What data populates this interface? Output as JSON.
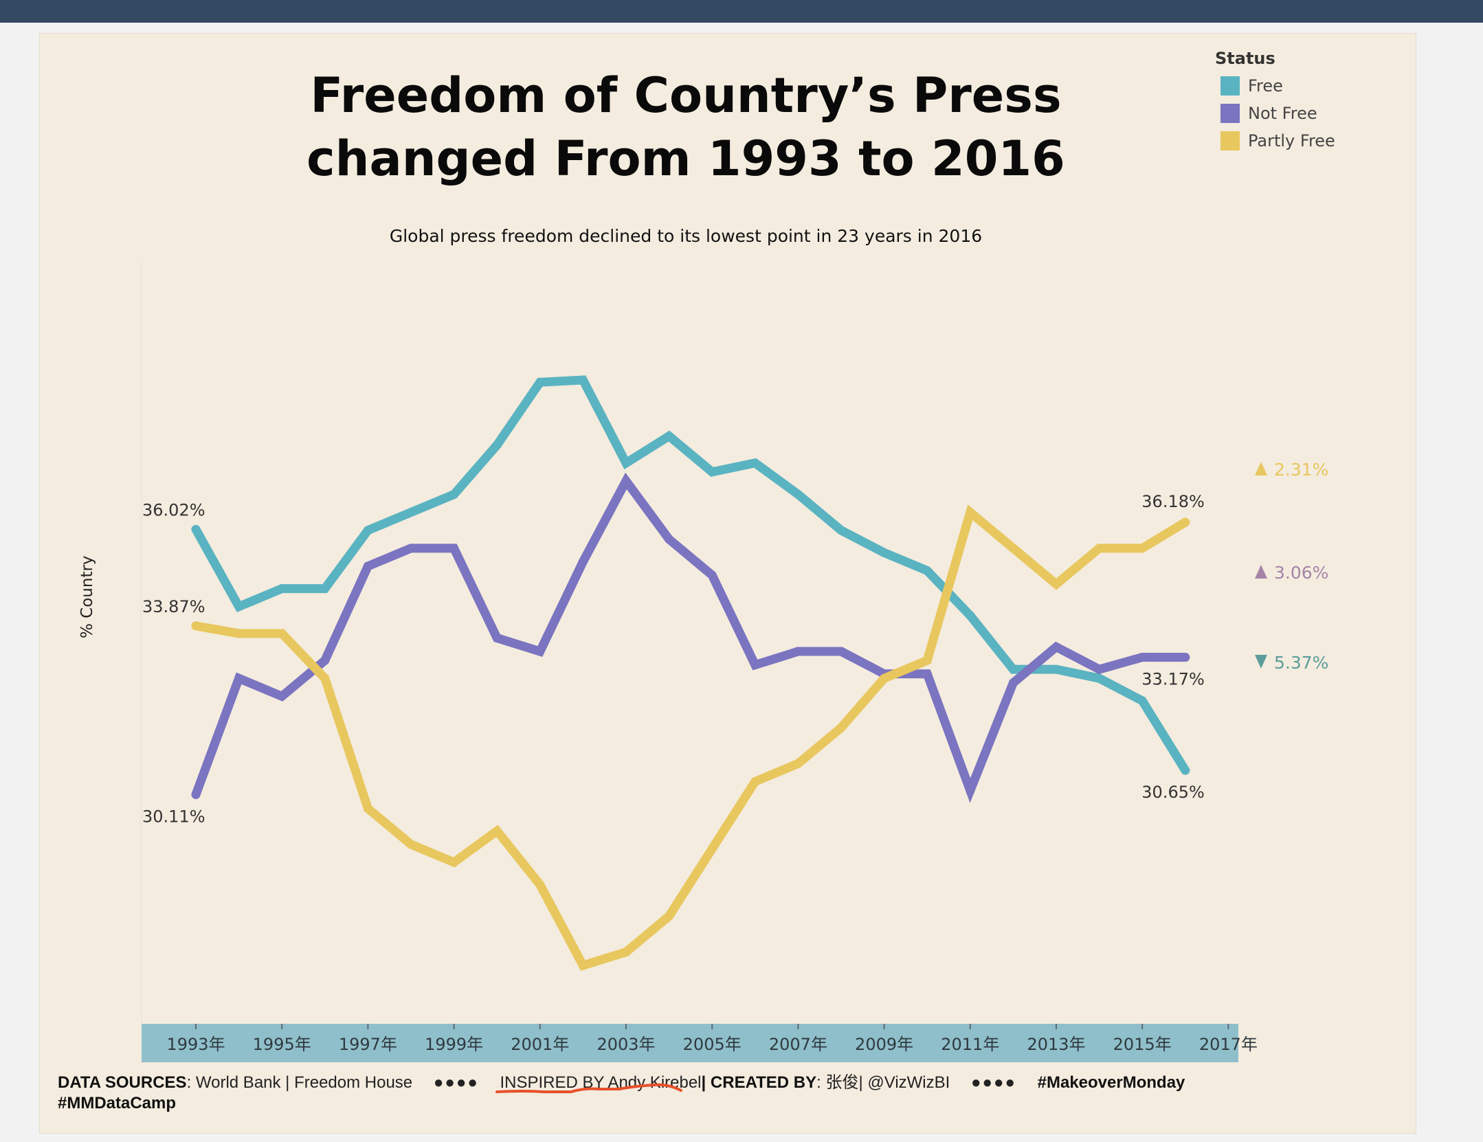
{
  "chart_data": {
    "type": "line",
    "title_line1": "Freedom of Country’s Press",
    "title_line2": "changed From 1993 to 2016",
    "subtitle": "Global press freedom declined to its lowest point in 23 years in 2016",
    "ylabel": "% Country",
    "ylim": [
      25,
      42
    ],
    "x": [
      1993,
      1994,
      1995,
      1996,
      1997,
      1998,
      1999,
      2000,
      2001,
      2002,
      2003,
      2004,
      2005,
      2006,
      2007,
      2008,
      2009,
      2010,
      2011,
      2012,
      2013,
      2014,
      2015,
      2016
    ],
    "xticks": [
      "1993年",
      "1995年",
      "1997年",
      "1999年",
      "2001年",
      "2003年",
      "2005年",
      "2007年",
      "2009年",
      "2011年",
      "2013年",
      "2015年",
      "2017年"
    ],
    "xtick_years": [
      1993,
      1995,
      1997,
      1999,
      2001,
      2003,
      2005,
      2007,
      2009,
      2011,
      2013,
      2015,
      2017
    ],
    "legend_title": "Status",
    "series": [
      {
        "name": "Free",
        "color": "#5ab3c1",
        "values": [
          36.02,
          34.3,
          34.7,
          34.7,
          36.0,
          36.4,
          36.8,
          37.9,
          39.3,
          39.35,
          37.5,
          38.1,
          37.3,
          37.5,
          36.8,
          36.0,
          35.5,
          35.1,
          34.1,
          32.9,
          32.9,
          32.7,
          32.2,
          30.65
        ],
        "start_label": "36.02%",
        "end_label": "30.65%",
        "change_label": "5.37%",
        "change_dir": "down",
        "change_color": "#5b9c9a"
      },
      {
        "name": "Not Free",
        "color": "#7b74c0",
        "values": [
          30.11,
          32.7,
          32.3,
          33.1,
          35.2,
          35.6,
          35.6,
          33.6,
          33.3,
          35.3,
          37.1,
          35.8,
          35.0,
          33.0,
          33.3,
          33.3,
          32.8,
          32.8,
          30.2,
          32.6,
          33.4,
          32.9,
          33.17,
          33.17
        ],
        "start_label": "30.11%",
        "end_label": "33.17%",
        "change_label": "3.06%",
        "change_dir": "up",
        "change_color": "#a583a6"
      },
      {
        "name": "Partly Free",
        "color": "#e8c75e",
        "values": [
          33.87,
          33.7,
          33.7,
          32.7,
          29.8,
          29.0,
          28.6,
          29.3,
          28.1,
          26.3,
          26.6,
          27.4,
          28.9,
          30.4,
          30.8,
          31.6,
          32.7,
          33.1,
          36.4,
          35.6,
          34.8,
          35.6,
          35.6,
          36.18
        ],
        "start_label": "33.87%",
        "end_label": "36.18%",
        "change_label": "2.31%",
        "change_dir": "up",
        "change_color": "#e8c75e"
      }
    ]
  },
  "footer": {
    "sources_label": "DATA SOURCES",
    "sources_text": ": World Bank | Freedom House",
    "dots": "●●●●",
    "inspired_text": "INSPIRED BY Andy Kirebel",
    "created_label": "| CREATED BY",
    "created_text": ": 张俊| @VizWizBI",
    "dots2": "●●●●",
    "hashtag1": "#MakeoverMonday",
    "hashtag2": "#MMDataCamp"
  },
  "colors": {
    "axis_band": "#8fbfca",
    "scribble": "#e8502a"
  }
}
